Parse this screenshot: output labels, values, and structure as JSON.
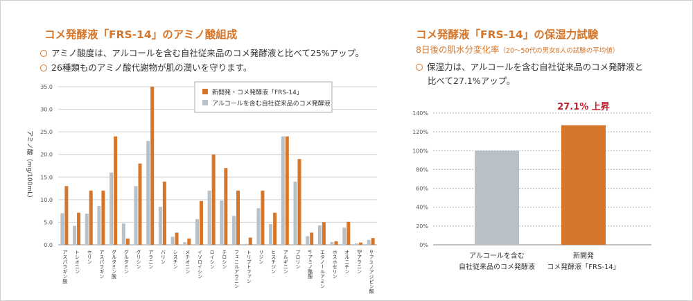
{
  "left": {
    "title": "コメ発酵液「FRS-14」のアミノ酸組成",
    "bullets": [
      "アミノ酸度は、アルコールを含む自社従来品のコメ発酵液と比べて25%アップ。",
      "26種類ものアミノ酸代謝物が肌の潤いを守ります。"
    ]
  },
  "right": {
    "title": "コメ発酵液「FRS-14」の保湿力試験",
    "subtitle_main": "8日後の肌水分変化率",
    "subtitle_note": "（20～50代の男女8人の試験の平均値）",
    "bullet": "保湿力は、アルコールを含む自社従来品のコメ発酵液と",
    "bullet_cont": "比べて27.1%アップ。",
    "annotation": "27.1% 上昇"
  },
  "colors": {
    "new": "#d5762a",
    "old": "#b7c1c7",
    "accent": "#d5762a",
    "annotation": "#c2202f"
  },
  "chart_data": [
    {
      "type": "bar",
      "title": "",
      "xlabel": "",
      "ylabel": "アミノ酸（mg/100mL）",
      "ylim": [
        0,
        35
      ],
      "yticks": [
        "0.0",
        "5.0",
        "10.0",
        "15.0",
        "20.0",
        "25.0",
        "30.0",
        "35.0"
      ],
      "legend_position": "top-right",
      "grid": true,
      "categories": [
        "アスパラギン酸",
        "トレオニン",
        "セリン",
        "アスパラギン",
        "グルタミン酸",
        "グルタミン",
        "グリシン",
        "アラニン",
        "バリン",
        "シスチン",
        "メチオニン",
        "イソロイシン",
        "ロイシン",
        "チロシン",
        "フェニルアラニン",
        "トリプトファン",
        "リジン",
        "ヒスチジン",
        "アルギニン",
        "プロリン",
        "γ-アミノ酪酸",
        "エタノールアミン",
        "ホスホセリン",
        "オルニチン",
        "β-アラニン",
        "α-アミノアジピン酸"
      ],
      "series": [
        {
          "name": "アルコールを含む自社従来品のコメ発酵液",
          "values": [
            7.0,
            4.2,
            6.9,
            8.6,
            16.0,
            4.7,
            13.0,
            23.0,
            8.4,
            1.8,
            0.6,
            5.7,
            12.0,
            9.8,
            6.4,
            0.2,
            8.1,
            4.6,
            24.0,
            14.0,
            1.9,
            4.3,
            0.6,
            3.8,
            0.3,
            1.1
          ]
        },
        {
          "name": "新開発・コメ発酵液「FRS-14」",
          "values": [
            13.0,
            7.1,
            12.0,
            12.0,
            24.0,
            1.4,
            18.0,
            35.0,
            14.0,
            2.7,
            1.4,
            9.7,
            20.0,
            17.0,
            12.0,
            1.6,
            12.0,
            7.1,
            24.0,
            19.0,
            2.7,
            5.0,
            0.8,
            5.1,
            0.5,
            1.5
          ]
        }
      ]
    },
    {
      "type": "bar",
      "title": "",
      "ylim": [
        0,
        140
      ],
      "yticks": [
        "0%",
        "20%",
        "40%",
        "60%",
        "80%",
        "100%",
        "120%",
        "140%"
      ],
      "categories": [
        [
          "アルコールを含む",
          "自社従来品のコメ発酵液"
        ],
        [
          "新開発",
          "コメ発酵液「FRS-14」"
        ]
      ],
      "values": [
        100,
        127.1
      ],
      "colors": [
        "#b7c1c7",
        "#d5762a"
      ],
      "grid": true
    }
  ]
}
